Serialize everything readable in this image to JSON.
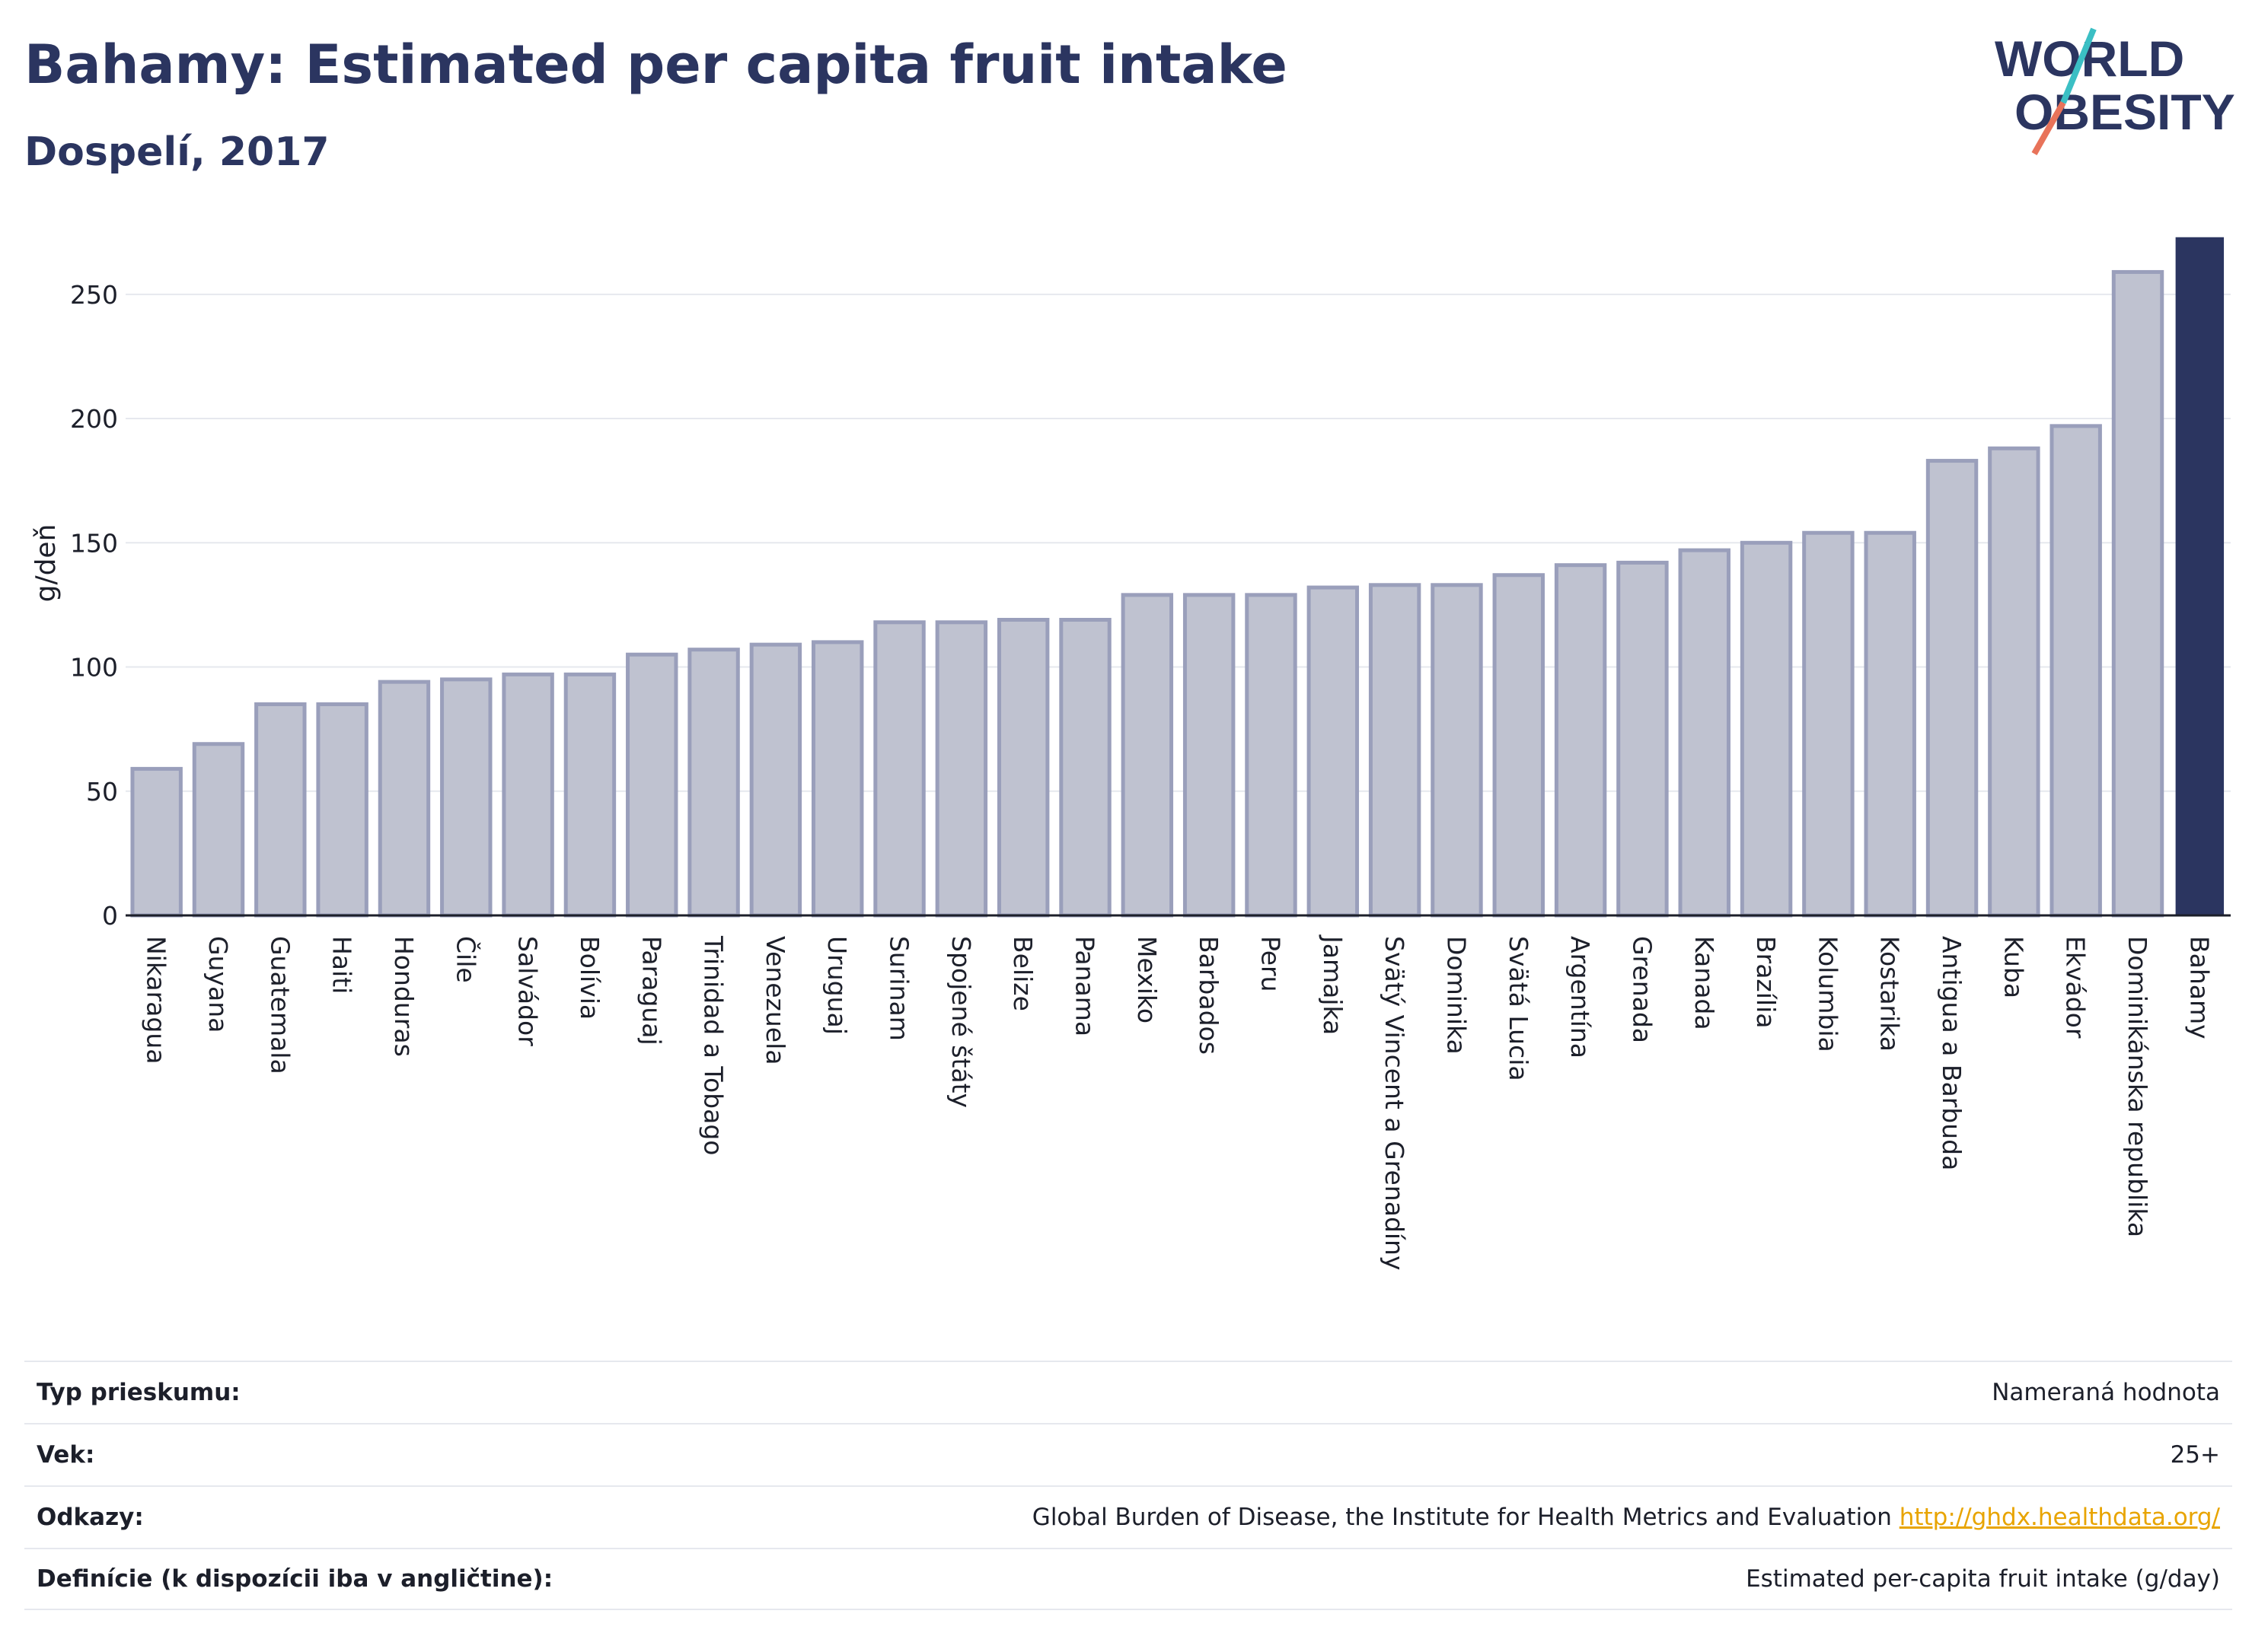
{
  "header": {
    "title": "Bahamy: Estimated per capita fruit intake",
    "subtitle": "Dospelí, 2017"
  },
  "logo": {
    "line1": "WORLD",
    "line2": "OBESITY",
    "colors": {
      "text": "#2b3560",
      "slash_teal": "#3bbfc4",
      "slash_coral": "#e8735a"
    }
  },
  "colors": {
    "bar_fill": "#bfc2d0",
    "bar_stroke": "#9a9fbb",
    "highlight": "#2b3560",
    "grid": "#e6e8ee",
    "axis": "#1c1f2a"
  },
  "chart_data": {
    "type": "bar",
    "ylabel": "g/deň",
    "ylim": [
      0,
      272
    ],
    "yticks": [
      0,
      50,
      100,
      150,
      200,
      250
    ],
    "grid": true,
    "highlight_category": "Bahamy",
    "categories": [
      "Nikaragua",
      "Guyana",
      "Guatemala",
      "Haiti",
      "Honduras",
      "Čile",
      "Salvádor",
      "Bolívia",
      "Paraguaj",
      "Trinidad a Tobago",
      "Venezuela",
      "Uruguaj",
      "Surinam",
      "Spojené štáty",
      "Belize",
      "Panama",
      "Mexiko",
      "Barbados",
      "Peru",
      "Jamajka",
      "Svätý Vincent a Grenadíny",
      "Dominika",
      "Svätá Lucia",
      "Argentína",
      "Grenada",
      "Kanada",
      "Brazília",
      "Kolumbia",
      "Kostarika",
      "Antigua a Barbuda",
      "Kuba",
      "Ekvádor",
      "Dominikánska republika",
      "Bahamy"
    ],
    "values": [
      59,
      69,
      85,
      85,
      94,
      95,
      97,
      97,
      105,
      107,
      109,
      110,
      118,
      118,
      119,
      119,
      129,
      129,
      129,
      132,
      133,
      133,
      137,
      141,
      142,
      147,
      150,
      154,
      154,
      183,
      188,
      197,
      259,
      273
    ]
  },
  "info": {
    "rows": [
      {
        "label": "Typ prieskumu:",
        "value": "Nameraná hodnota",
        "link": ""
      },
      {
        "label": "Vek:",
        "value": "25+",
        "link": ""
      },
      {
        "label": "Odkazy:",
        "value": "Global Burden of Disease, the Institute for Health Metrics and Evaluation",
        "link": "http://ghdx.healthdata.org/"
      },
      {
        "label": "Definície (k dispozícii iba v angličtine):",
        "value": "Estimated per-capita fruit intake (g/day)",
        "link": ""
      }
    ]
  }
}
